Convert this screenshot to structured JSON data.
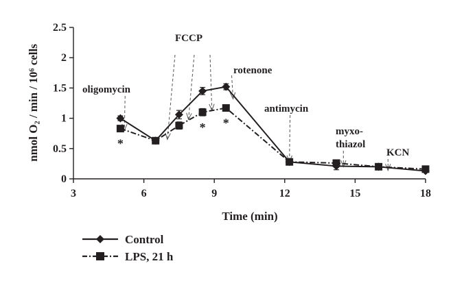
{
  "chart_data": {
    "type": "line",
    "xlabel": "Time (min)",
    "ylabel": "nmol O₂ / min / 10⁶ cells",
    "xlim": [
      3,
      18
    ],
    "ylim": [
      0,
      2.5
    ],
    "x_ticks": [
      "3",
      "6",
      "9",
      "12",
      "15",
      "18"
    ],
    "y_ticks": [
      "0",
      "0.5",
      "1",
      "1.5",
      "2",
      "2.5"
    ],
    "grid": false,
    "legend_position": "bottom-left, below plot",
    "series": [
      {
        "name": "Control",
        "marker": "diamond",
        "line_style": "solid",
        "color": "#231f20",
        "points": [
          {
            "x": 5.0,
            "y": 1.0,
            "err": 0.04
          },
          {
            "x": 6.5,
            "y": 0.63,
            "err": 0.02
          },
          {
            "x": 7.5,
            "y": 1.06,
            "err": 0.07
          },
          {
            "x": 8.5,
            "y": 1.45,
            "err": 0.06
          },
          {
            "x": 9.5,
            "y": 1.52,
            "err": 0.05
          },
          {
            "x": 12.2,
            "y": 0.28,
            "err": 0.02
          },
          {
            "x": 14.2,
            "y": 0.21,
            "err": 0.06
          },
          {
            "x": 16.0,
            "y": 0.2,
            "err": 0.02
          },
          {
            "x": 18.0,
            "y": 0.13,
            "err": 0.02
          }
        ]
      },
      {
        "name": "LPS, 21 h",
        "marker": "square",
        "line_style": "dash-dot",
        "color": "#231f20",
        "points": [
          {
            "x": 5.0,
            "y": 0.83,
            "err": 0.02
          },
          {
            "x": 6.5,
            "y": 0.63,
            "err": 0.02
          },
          {
            "x": 7.5,
            "y": 0.88,
            "err": 0.06
          },
          {
            "x": 8.5,
            "y": 1.1,
            "err": 0.06
          },
          {
            "x": 9.5,
            "y": 1.17,
            "err": 0.05
          },
          {
            "x": 12.2,
            "y": 0.28,
            "err": 0.02
          },
          {
            "x": 14.2,
            "y": 0.26,
            "err": 0.03
          },
          {
            "x": 16.0,
            "y": 0.2,
            "err": 0.02
          },
          {
            "x": 18.0,
            "y": 0.16,
            "err": 0.02
          }
        ]
      }
    ],
    "annotations": {
      "oligomycin": "oligomycin",
      "fccp": "FCCP",
      "rotenone": "rotenone",
      "antimycin": "antimycin",
      "myxo_line1": "myxo-",
      "myxo_line2": "thiazol",
      "kcn": "KCN"
    },
    "injection_times": {
      "oligomycin": 5.2,
      "fccp": [
        7.0,
        7.9,
        8.9
      ],
      "rotenone": 9.8,
      "antimycin": 12.2,
      "myxothiazol": 14.5,
      "kcn": 16.4
    },
    "significance": {
      "symbol": "*",
      "x_values": [
        5.0,
        8.5,
        9.5
      ]
    }
  }
}
